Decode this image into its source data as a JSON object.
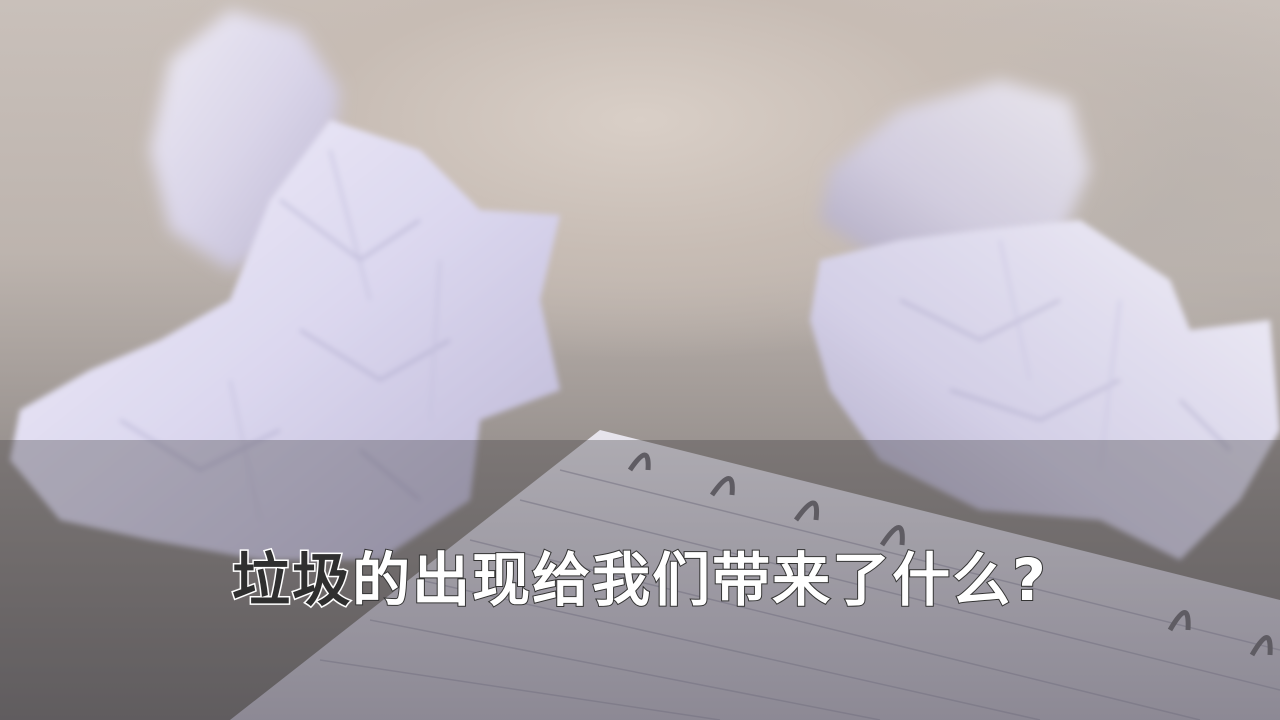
{
  "slide": {
    "title_highlight": "垃圾",
    "title_rest": "的出现给我们带来了什么?"
  },
  "colors": {
    "highlight_text": "#2f2f2f",
    "title_text": "#ffffff",
    "band_overlay": "#46424a"
  }
}
